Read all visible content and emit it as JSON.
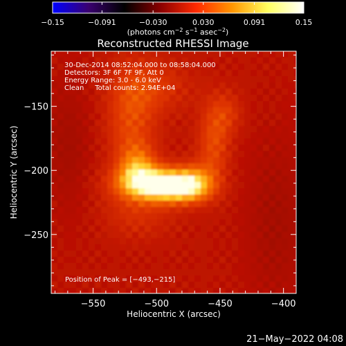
{
  "chart_data": {
    "type": "heatmap",
    "title": "Reconstructed RHESSI Image",
    "xlabel": "Heliocentric X (arcsec)",
    "ylabel": "Heliocentric Y (arcsec)",
    "xlim": [
      -583,
      -390
    ],
    "ylim": [
      -296,
      -107
    ],
    "x_ticks": [
      -550,
      -500,
      -450,
      -400
    ],
    "y_ticks": [
      -150,
      -200,
      -250
    ],
    "x_tick_labels": [
      "−550",
      "−500",
      "−450",
      "−400"
    ],
    "y_tick_labels": [
      "−150",
      "−200",
      "−250"
    ],
    "colorbar": {
      "min": -0.15,
      "max": 0.15,
      "ticks": [
        -0.15,
        -0.091,
        -0.03,
        0.03,
        0.091,
        0.15
      ],
      "tick_labels": [
        "−0.15",
        "−0.091",
        "−0.030",
        "0.030",
        "0.091",
        "0.15"
      ],
      "label_prefix": "(photons cm",
      "label_exp1": "−2",
      "label_mid": " s",
      "label_exp2": "−1",
      "label_mid2": " asec",
      "label_exp3": "−2",
      "label_suffix": ")",
      "colors": [
        "#0000ff",
        "#3a0070",
        "#000000",
        "#8a0000",
        "#ff2a00",
        "#ff9600",
        "#ffff60",
        "#ffffff"
      ]
    },
    "annotations": [
      "30-Dec-2014 08:52:04.000 to 08:58:04.000",
      "Detectors: 3F 6F 7F 9F, Att 0",
      "Energy Range: 3.0 - 6.0 keV",
      "Clean     Total counts: 2.94E+04"
    ],
    "peak_label": "Position of Peak = [−493,−215]",
    "peak": [
      -493,
      -215
    ],
    "footer": "21−May−2022 04:08"
  }
}
